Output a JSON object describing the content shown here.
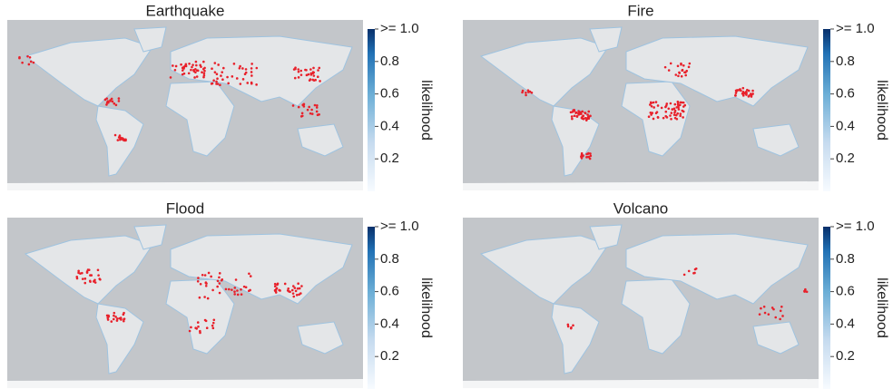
{
  "chart_data": [
    {
      "type": "map",
      "title": "Earthquake",
      "colorbar": {
        "label": "likelihood",
        "lim": [
          0,
          1
        ],
        "ticks": [
          0.2,
          0.4,
          0.6,
          0.8,
          {
            "value": 1.0,
            "label": ">= 1.0"
          }
        ]
      }
    },
    {
      "type": "map",
      "title": "Fire",
      "colorbar": {
        "label": "likelihood",
        "lim": [
          0,
          1
        ],
        "ticks": [
          0.2,
          0.4,
          0.6,
          0.8,
          {
            "value": 1.0,
            "label": ">= 1.0"
          }
        ]
      }
    },
    {
      "type": "map",
      "title": "Flood",
      "colorbar": {
        "label": "likelihood",
        "lim": [
          0,
          1
        ],
        "ticks": [
          0.2,
          0.4,
          0.6,
          0.8,
          {
            "value": 1.0,
            "label": ">= 1.0"
          }
        ]
      }
    },
    {
      "type": "map",
      "title": "Volcano",
      "colorbar": {
        "label": "likelihood",
        "lim": [
          0,
          1
        ],
        "ticks": [
          0.2,
          0.4,
          0.6,
          0.8,
          {
            "value": 1.0,
            "label": ">= 1.0"
          }
        ]
      }
    }
  ]
}
